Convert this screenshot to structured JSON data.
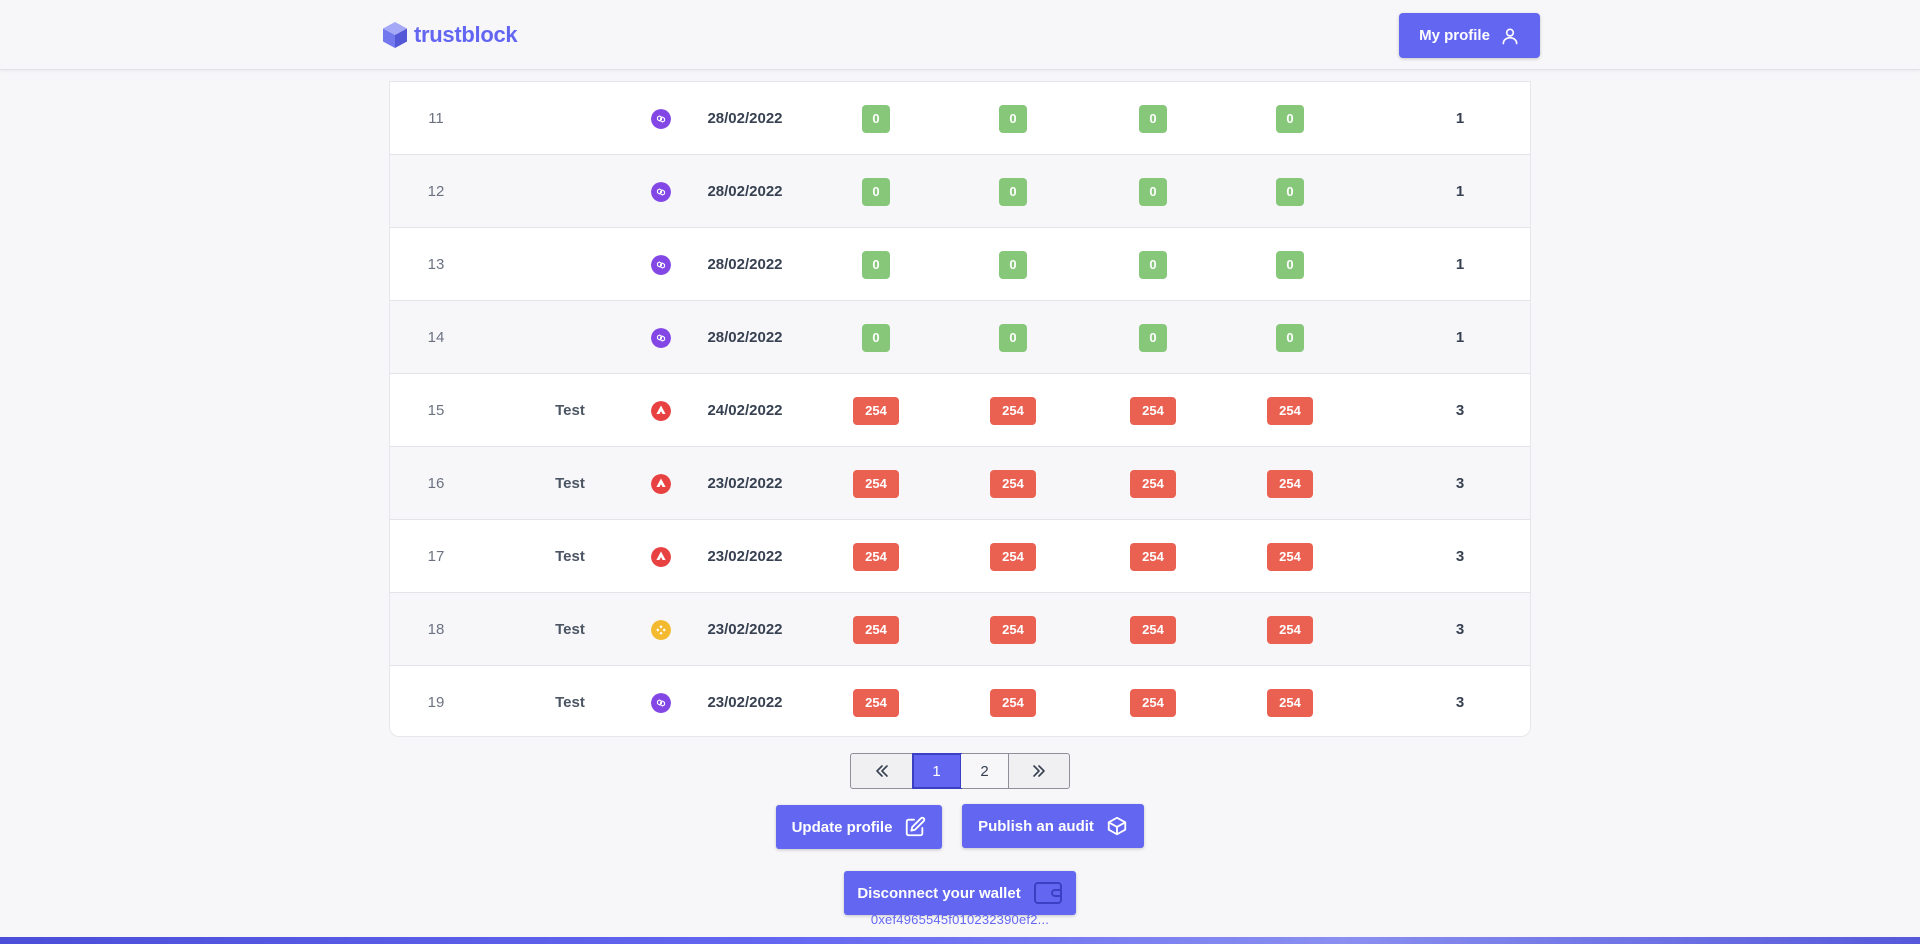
{
  "header": {
    "logo_text": "trustblock",
    "profile_button": "My profile"
  },
  "colors": {
    "accent": "#6366f1",
    "badge_green": "#86c77a",
    "badge_red": "#ea6152"
  },
  "table": {
    "rows": [
      {
        "num": "11",
        "name": "",
        "chain": "polygon",
        "date": "28/02/2022",
        "b1": "0",
        "b2": "0",
        "b3": "0",
        "b4": "0",
        "status": "green",
        "total": "1"
      },
      {
        "num": "12",
        "name": "",
        "chain": "polygon",
        "date": "28/02/2022",
        "b1": "0",
        "b2": "0",
        "b3": "0",
        "b4": "0",
        "status": "green",
        "total": "1"
      },
      {
        "num": "13",
        "name": "",
        "chain": "polygon",
        "date": "28/02/2022",
        "b1": "0",
        "b2": "0",
        "b3": "0",
        "b4": "0",
        "status": "green",
        "total": "1"
      },
      {
        "num": "14",
        "name": "",
        "chain": "polygon",
        "date": "28/02/2022",
        "b1": "0",
        "b2": "0",
        "b3": "0",
        "b4": "0",
        "status": "green",
        "total": "1"
      },
      {
        "num": "15",
        "name": "Test",
        "chain": "avalanche",
        "date": "24/02/2022",
        "b1": "254",
        "b2": "254",
        "b3": "254",
        "b4": "254",
        "status": "red",
        "total": "3"
      },
      {
        "num": "16",
        "name": "Test",
        "chain": "avalanche",
        "date": "23/02/2022",
        "b1": "254",
        "b2": "254",
        "b3": "254",
        "b4": "254",
        "status": "red",
        "total": "3"
      },
      {
        "num": "17",
        "name": "Test",
        "chain": "avalanche",
        "date": "23/02/2022",
        "b1": "254",
        "b2": "254",
        "b3": "254",
        "b4": "254",
        "status": "red",
        "total": "3"
      },
      {
        "num": "18",
        "name": "Test",
        "chain": "bnb",
        "date": "23/02/2022",
        "b1": "254",
        "b2": "254",
        "b3": "254",
        "b4": "254",
        "status": "red",
        "total": "3"
      },
      {
        "num": "19",
        "name": "Test",
        "chain": "polygon",
        "date": "23/02/2022",
        "b1": "254",
        "b2": "254",
        "b3": "254",
        "b4": "254",
        "status": "red",
        "total": "3"
      }
    ]
  },
  "pagination": {
    "prev_icon": "chevrons-left-icon",
    "pages": [
      "1",
      "2"
    ],
    "current": "1",
    "next_icon": "chevrons-right-icon"
  },
  "actions": {
    "update_profile": "Update profile",
    "publish_audit": "Publish an audit",
    "disconnect_wallet": "Disconnect your wallet",
    "wallet_address": "0xef4965545f010232390ef2..."
  }
}
